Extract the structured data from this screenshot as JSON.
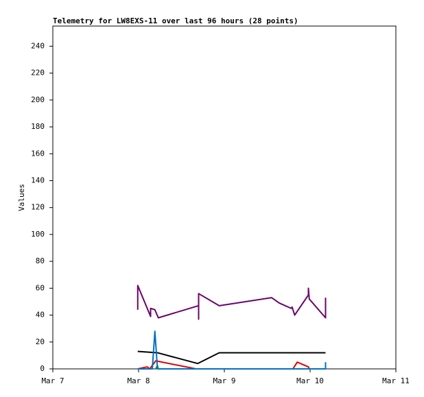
{
  "chart_data": {
    "type": "line",
    "title": "Telemetry for LW8EXS-11 over last 96 hours (28 points)",
    "y_label": "Values",
    "xlim": [
      0,
      4
    ],
    "xticks": [
      {
        "value": 0,
        "label": "Mar 7"
      },
      {
        "value": 1,
        "label": "Mar 8"
      },
      {
        "value": 2,
        "label": "Mar 9"
      },
      {
        "value": 3,
        "label": "Mar 10"
      },
      {
        "value": 4,
        "label": "Mar 11"
      }
    ],
    "ylim": [
      0,
      255
    ],
    "yticks": [
      0,
      20,
      40,
      60,
      80,
      100,
      120,
      140,
      160,
      180,
      200,
      220,
      240
    ],
    "series": [
      {
        "color": "#6b006b",
        "x": [
          0.99,
          0.99,
          1.14,
          1.14,
          1.19,
          1.23,
          1.7,
          1.7,
          1.7,
          1.94,
          2.55,
          2.64,
          2.78,
          2.79,
          2.82,
          2.98,
          2.98,
          2.99,
          3.18,
          3.18
        ],
        "values": [
          44,
          62,
          39,
          45,
          44,
          38,
          47,
          37,
          56,
          47,
          53,
          49,
          45,
          46,
          40,
          55,
          60,
          52,
          38,
          53
        ]
      },
      {
        "color": "#000000",
        "x": [
          0.99,
          1.22,
          1.69,
          1.94,
          3.18
        ],
        "values": [
          13,
          12,
          4,
          12,
          12
        ]
      },
      {
        "color": "#e00000",
        "x": [
          0.99,
          1.1,
          1.13,
          1.2,
          1.67,
          2.8,
          2.85,
          2.98,
          2.99
        ],
        "values": [
          0,
          1.5,
          0,
          6,
          0,
          0,
          5,
          1.5,
          0
        ]
      },
      {
        "color": "#00a000",
        "x": [
          1.2,
          1.22,
          1.23
        ],
        "values": [
          0,
          2.5,
          0
        ]
      },
      {
        "color": "#0070c0",
        "x": [
          0.99,
          1.16,
          1.19,
          1.22,
          3.18,
          3.18
        ],
        "values": [
          0,
          0,
          28,
          0,
          0,
          5
        ]
      }
    ]
  }
}
